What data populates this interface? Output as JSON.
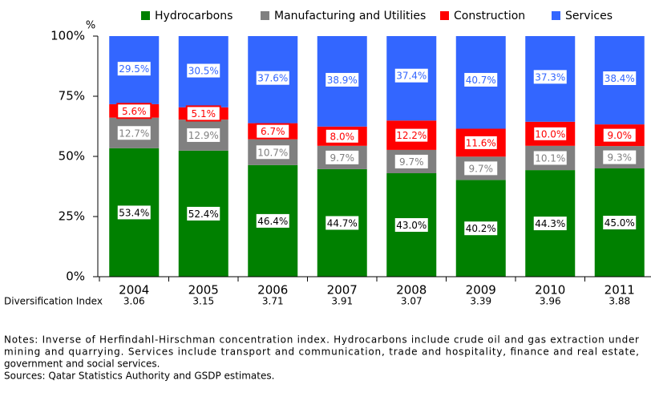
{
  "chart_data": {
    "type": "stacked_bar",
    "y_axis_label": "%",
    "categories": [
      "2004",
      "2005",
      "2006",
      "2007",
      "2008",
      "2009",
      "2010",
      "2011"
    ],
    "series": [
      {
        "name": "Hydrocarbons",
        "color": "#008000",
        "values": [
          53.4,
          52.4,
          46.4,
          44.7,
          43.0,
          40.2,
          44.3,
          45.0
        ],
        "value_labels": [
          "53.4%",
          "52.4%",
          "46.4%",
          "44.7%",
          "43.0%",
          "40.2%",
          "44.3%",
          "45.0%"
        ]
      },
      {
        "name": "Manufacturing and Utilities",
        "color": "#808080",
        "values": [
          12.7,
          12.9,
          10.7,
          9.7,
          9.7,
          9.7,
          10.1,
          9.3
        ],
        "value_labels": [
          "12.7%",
          "12.9%",
          "10.7%",
          "9.7%",
          "9.7%",
          "9.7%",
          "10.1%",
          "9.3%"
        ]
      },
      {
        "name": "Construction",
        "color": "#ff0000",
        "values": [
          5.6,
          5.1,
          6.7,
          8.0,
          12.2,
          11.6,
          10.0,
          9.0
        ],
        "value_labels": [
          "5.6%",
          "5.1%",
          "6.7%",
          "8.0%",
          "12.2%",
          "11.6%",
          "10.0%",
          "9.0%"
        ]
      },
      {
        "name": "Services",
        "color": "#3366ff",
        "values": [
          29.5,
          30.5,
          37.6,
          38.9,
          37.4,
          40.7,
          37.3,
          38.4
        ],
        "value_labels": [
          "29.5%",
          "30.5%",
          "37.6%",
          "38.9%",
          "37.4%",
          "40.7%",
          "37.3%",
          "38.4%"
        ]
      }
    ],
    "ylim": [
      0,
      100
    ],
    "yticks": [
      {
        "value": 0,
        "label": "0%"
      },
      {
        "value": 25,
        "label": "25%"
      },
      {
        "value": 50,
        "label": "50%"
      },
      {
        "value": 75,
        "label": "75%"
      },
      {
        "value": 100,
        "label": "100%"
      }
    ],
    "legend": "top",
    "index_row": {
      "label": "Diversification Index",
      "values": [
        "3.06",
        "3.15",
        "3.71",
        "3.91",
        "3.07",
        "3.39",
        "3.96",
        "3.88"
      ]
    },
    "notes": [
      "Notes: Inverse of Herfindahl-Hirschman concentration index. Hydrocarbons include crude oil and gas extraction under",
      "mining and quarrying. Services include transport and communication, trade and hospitality, finance and real estate,",
      "government and social services."
    ],
    "sources": "Sources: Qatar Statistics Authority and GSDP estimates."
  }
}
